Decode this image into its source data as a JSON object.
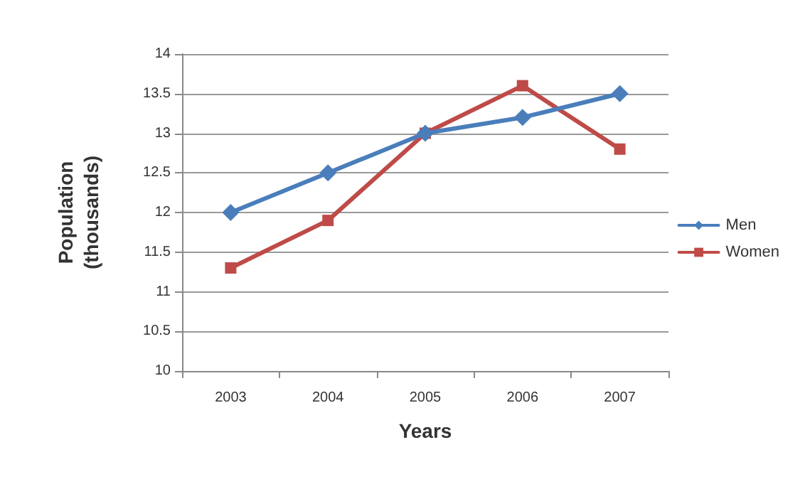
{
  "chart_data": {
    "type": "line",
    "xlabel": "Years",
    "ylabel": "Population\n(thousands)",
    "categories": [
      "2003",
      "2004",
      "2005",
      "2006",
      "2007"
    ],
    "series": [
      {
        "name": "Men",
        "color": "#4a7ebb",
        "marker": "diamond",
        "values": [
          12,
          12.5,
          13,
          13.2,
          13.5
        ]
      },
      {
        "name": "Women",
        "color": "#be4b48",
        "marker": "square",
        "values": [
          11.3,
          11.9,
          13,
          13.6,
          12.8
        ]
      }
    ],
    "ylim": [
      10,
      14
    ],
    "yticks": [
      10,
      10.5,
      11,
      11.5,
      12,
      12.5,
      13,
      13.5,
      14
    ],
    "grid": "y",
    "legend": "right",
    "line_style": "solid"
  }
}
